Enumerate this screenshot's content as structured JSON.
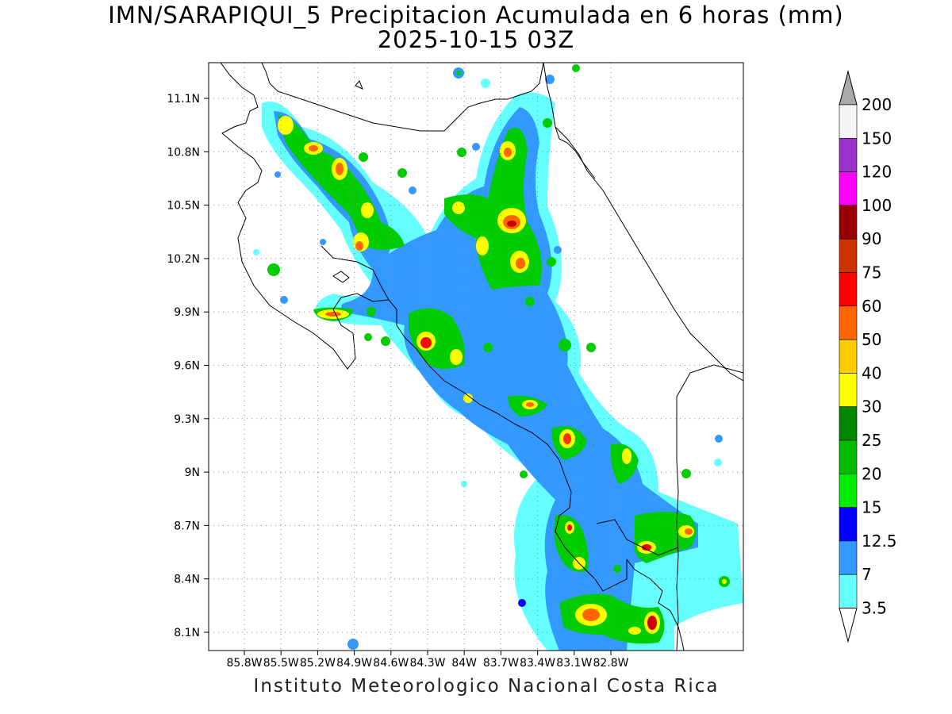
{
  "title_line1": "IMN/SARAPIQUI_5 Precipitacion Acumulada en 6 horas (mm)",
  "title_line2": "2025-10-15 03Z",
  "footer": "Instituto Meteorologico Nacional Costa Rica",
  "map": {
    "lon_labels": [
      "85.8W",
      "85.5W",
      "85.2W",
      "84.9W",
      "84.6W",
      "84.3W",
      "84W",
      "83.7W",
      "83.4W",
      "83.1W",
      "82.8W"
    ],
    "lat_labels": [
      "11.1N",
      "10.8N",
      "10.5N",
      "10.2N",
      "9.9N",
      "9.6N",
      "9.3N",
      "9N",
      "8.7N",
      "8.4N",
      "8.1N"
    ],
    "gridlines": true
  },
  "colorbar": {
    "labels": [
      "200",
      "150",
      "120",
      "100",
      "90",
      "75",
      "60",
      "50",
      "40",
      "30",
      "25",
      "20",
      "15",
      "12.5",
      "7",
      "3.5"
    ],
    "colors": [
      "#f5f5f5",
      "#9933cc",
      "#ff00ff",
      "#990000",
      "#cc3300",
      "#ff0000",
      "#ff6600",
      "#ffcc00",
      "#ffff00",
      "#008800",
      "#00bb00",
      "#00ee00",
      "#0000ff",
      "#3399ff",
      "#66ffff"
    ],
    "upper_arrow_color": "#aaaaaa",
    "lower_arrow_color": "#ffffff"
  }
}
